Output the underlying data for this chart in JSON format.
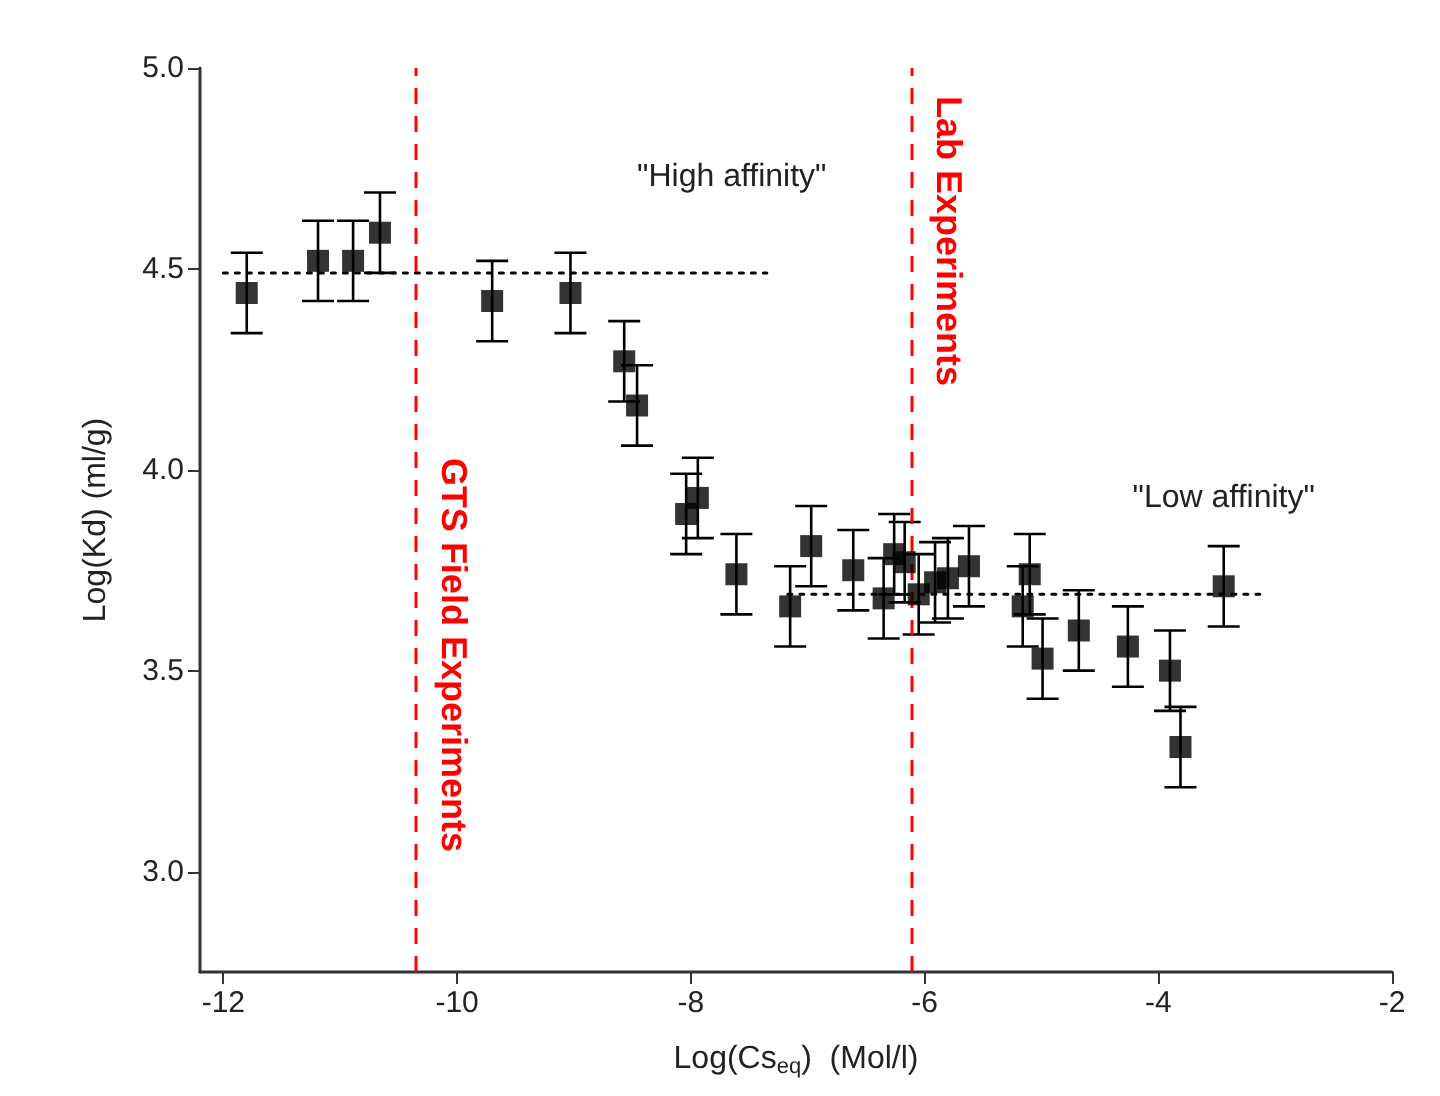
{
  "chart_data": {
    "type": "scatter",
    "xlabel": "Log(Cs$_{eq}$)  (Mol/l)",
    "ylabel": "Log(Kd) (ml/g)",
    "xlim": [
      -12.2,
      -2
    ],
    "xticks": [
      -12,
      -10,
      -8,
      -6,
      -4,
      -2
    ],
    "ylim": [
      2.75,
      5.0
    ],
    "yticks": [
      {
        "value": 3,
        "label": "3.0"
      },
      {
        "value": 3.5,
        "label": "3.5"
      },
      {
        "value": 4,
        "label": "4.0"
      },
      {
        "value": 4.5,
        "label": "4.5"
      },
      {
        "value": 5,
        "label": "5.0"
      }
    ],
    "grid": false,
    "series": [
      {
        "color": "#000000",
        "marker": "square",
        "x": [
          -11.8,
          -11.19,
          -10.89,
          -10.66,
          -9.7,
          -9.03,
          -8.57,
          -8.46,
          -8.04,
          -7.94,
          -7.61,
          -7.15,
          -6.97,
          -6.61,
          -6.35,
          -6.26,
          -6.17,
          -6.05,
          -5.91,
          -5.8,
          -5.62,
          -5.1,
          -5.16,
          -4.99,
          -4.68,
          -4.26,
          -3.9,
          -3.81,
          -3.44
        ],
        "values": [
          4.44,
          4.52,
          4.52,
          4.59,
          4.42,
          4.44,
          4.27,
          4.16,
          3.89,
          3.93,
          3.74,
          3.66,
          3.81,
          3.75,
          3.68,
          3.79,
          3.77,
          3.69,
          3.72,
          3.73,
          3.76,
          3.74,
          3.66,
          3.53,
          3.6,
          3.56,
          3.5,
          3.31,
          3.71
        ],
        "errors": [
          0.1,
          0.1,
          0.1,
          0.1,
          0.1,
          0.1,
          0.1,
          0.1,
          0.1,
          0.1,
          0.1,
          0.1,
          0.1,
          0.1,
          0.1,
          0.1,
          0.1,
          0.1,
          0.1,
          0.1,
          0.1,
          0.1,
          0.1,
          0.1,
          0.1,
          0.1,
          0.1,
          0.1,
          0.1
        ]
      },
      {
        "type": "line",
        "color": "#000000",
        "line_style": "dotted",
        "marker": "none",
        "x": [
          -12,
          -7.35
        ],
        "values": [
          4.49,
          4.49
        ]
      },
      {
        "type": "line",
        "color": "#000000",
        "line_style": "dotted",
        "marker": "none",
        "x": [
          -7.17,
          -3.08
        ],
        "values": [
          3.69,
          3.69
        ]
      }
    ],
    "ref_lines": [
      {
        "axis": "x",
        "value": -10.35,
        "label": "GTS Field Experiments",
        "color": "#ff0000",
        "line_style": "dashed"
      },
      {
        "axis": "x",
        "value": -6.12,
        "label": "Lab Experiments",
        "color": "#ff0000",
        "line_style": "dashed"
      }
    ],
    "annotations": [
      {
        "text": "\"High affinity\"",
        "x": -7.65,
        "y": 4.49
      },
      {
        "text": "\"Low affinity\"",
        "x": -3.44,
        "y": 3.69
      }
    ]
  }
}
